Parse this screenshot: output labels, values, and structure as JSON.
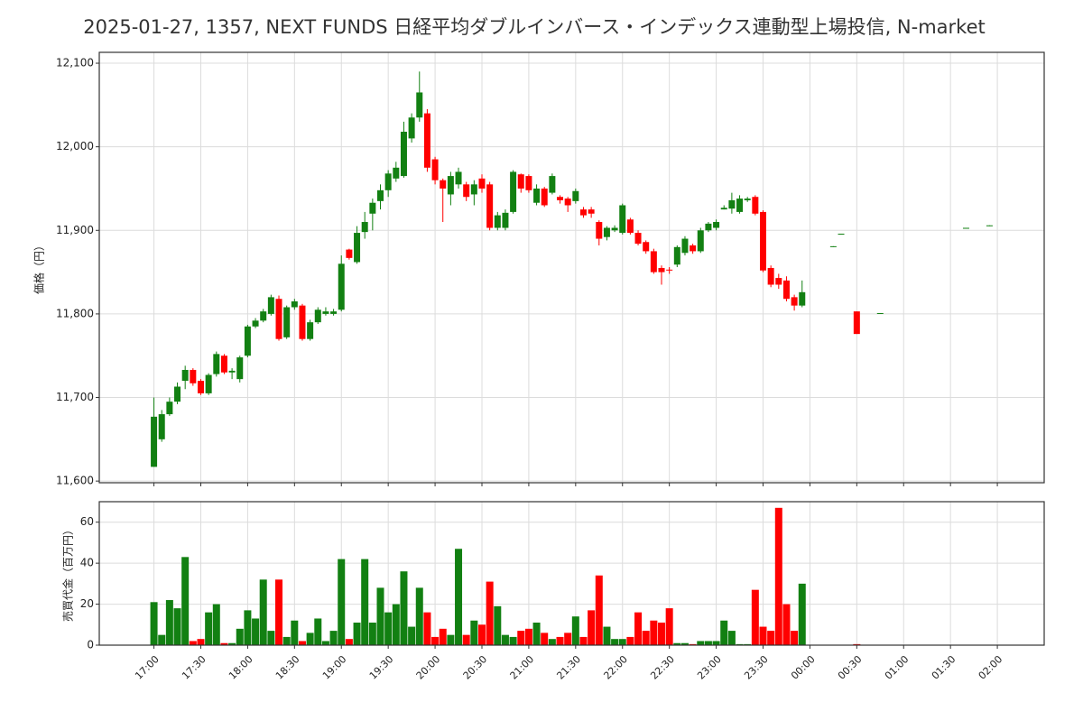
{
  "chart_data": [
    {
      "type": "candlestick",
      "title": "2025-01-27, 1357, NEXT FUNDS 日経平均ダブルインバース・インデックス連動型上場投信, N-market",
      "ylabel": "価格（円）",
      "up_color": "#128012",
      "down_color": "#ff0000",
      "grid": true,
      "ylim": [
        11598,
        12113
      ],
      "yticks": [
        {
          "value": 11600,
          "label": "11,600"
        },
        {
          "value": 11700,
          "label": "11,700"
        },
        {
          "value": 11800,
          "label": "11,800"
        },
        {
          "value": 11900,
          "label": "11,900"
        },
        {
          "value": 12000,
          "label": "12,000"
        },
        {
          "value": 12100,
          "label": "12,100"
        }
      ],
      "x": [
        "17:00",
        "17:05",
        "17:10",
        "17:15",
        "17:20",
        "17:25",
        "17:30",
        "17:35",
        "17:40",
        "17:45",
        "17:50",
        "17:55",
        "18:00",
        "18:05",
        "18:10",
        "18:15",
        "18:20",
        "18:25",
        "18:30",
        "18:35",
        "18:40",
        "18:45",
        "18:50",
        "18:55",
        "19:00",
        "19:05",
        "19:10",
        "19:15",
        "19:20",
        "19:25",
        "19:30",
        "19:35",
        "19:40",
        "19:45",
        "19:50",
        "19:55",
        "20:00",
        "20:05",
        "20:10",
        "20:15",
        "20:20",
        "20:25",
        "20:30",
        "20:35",
        "20:40",
        "20:45",
        "20:50",
        "20:55",
        "21:00",
        "21:05",
        "21:10",
        "21:15",
        "21:20",
        "21:25",
        "21:30",
        "21:35",
        "21:40",
        "21:45",
        "21:50",
        "21:55",
        "22:00",
        "22:05",
        "22:10",
        "22:15",
        "22:20",
        "22:25",
        "22:30",
        "22:35",
        "22:40",
        "22:45",
        "22:50",
        "22:55",
        "23:00",
        "23:05",
        "23:10",
        "23:15",
        "23:20",
        "23:25",
        "23:30",
        "23:35",
        "23:40",
        "23:45",
        "23:50",
        "23:55",
        "00:15",
        "00:20",
        "00:30",
        "00:45",
        "01:40",
        "01:55"
      ],
      "open": [
        11617,
        11650,
        11680,
        11695,
        11720,
        11733,
        11720,
        11705,
        11728,
        11750,
        11730,
        11722,
        11750,
        11785,
        11792,
        11800,
        11818,
        11772,
        11808,
        11810,
        11770,
        11790,
        11800,
        11800,
        11805,
        11877,
        11862,
        11898,
        11920,
        11935,
        11948,
        11962,
        11965,
        12010,
        12035,
        12040,
        11985,
        11960,
        11943,
        11955,
        11955,
        11943,
        11962,
        11955,
        11903,
        11903,
        11922,
        11967,
        11965,
        11933,
        11950,
        11945,
        11940,
        11938,
        11935,
        11925,
        11925,
        11910,
        11892,
        11900,
        11897,
        11913,
        11897,
        11886,
        11875,
        11855,
        11853,
        11859,
        11873,
        11882,
        11875,
        11900,
        11903,
        11925,
        11926,
        11922,
        11936,
        11940,
        11922,
        11855,
        11843,
        11840,
        11820,
        11810,
        11880,
        11895,
        11803,
        11800,
        11902,
        11905
      ],
      "high": [
        11700,
        11685,
        11700,
        11718,
        11738,
        11735,
        11722,
        11729,
        11755,
        11752,
        11735,
        11750,
        11787,
        11795,
        11806,
        11823,
        11822,
        11810,
        11818,
        11812,
        11793,
        11808,
        11808,
        11806,
        11870,
        11878,
        11905,
        11922,
        11938,
        11955,
        11972,
        11982,
        12030,
        12040,
        12090,
        12045,
        11988,
        11962,
        11970,
        11975,
        11958,
        11960,
        11967,
        11958,
        11922,
        11925,
        11972,
        11968,
        11967,
        11955,
        11952,
        11968,
        11942,
        11940,
        11950,
        11928,
        11928,
        11912,
        11905,
        11906,
        11932,
        11915,
        11900,
        11888,
        11878,
        11858,
        11856,
        11882,
        11893,
        11884,
        11903,
        11910,
        11913,
        11930,
        11945,
        11942,
        11940,
        11942,
        11924,
        11858,
        11848,
        11845,
        11823,
        11840,
        11881,
        11896,
        11803,
        11801,
        11903,
        11906
      ],
      "low": [
        11617,
        11647,
        11678,
        11692,
        11710,
        11714,
        11703,
        11703,
        11725,
        11728,
        11722,
        11718,
        11748,
        11783,
        11790,
        11798,
        11768,
        11770,
        11805,
        11768,
        11768,
        11788,
        11798,
        11798,
        11803,
        11865,
        11860,
        11890,
        11900,
        11925,
        11940,
        11958,
        11963,
        12005,
        12030,
        11970,
        11955,
        11910,
        11930,
        11950,
        11935,
        11930,
        11945,
        11900,
        11900,
        11900,
        11920,
        11945,
        11945,
        11930,
        11928,
        11943,
        11932,
        11922,
        11932,
        11915,
        11915,
        11882,
        11888,
        11898,
        11895,
        11895,
        11882,
        11872,
        11848,
        11835,
        11848,
        11856,
        11870,
        11872,
        11873,
        11898,
        11900,
        11925,
        11920,
        11920,
        11934,
        11918,
        11850,
        11832,
        11830,
        11815,
        11804,
        11808,
        11880,
        11895,
        11776,
        11800,
        11902,
        11905
      ],
      "close": [
        11677,
        11680,
        11695,
        11713,
        11733,
        11717,
        11705,
        11727,
        11752,
        11730,
        11732,
        11748,
        11785,
        11792,
        11803,
        11820,
        11770,
        11808,
        11815,
        11770,
        11790,
        11805,
        11803,
        11803,
        11860,
        11867,
        11897,
        11910,
        11933,
        11948,
        11968,
        11975,
        12018,
        12035,
        12065,
        11975,
        11960,
        11950,
        11965,
        11970,
        11940,
        11955,
        11950,
        11903,
        11918,
        11921,
        11970,
        11950,
        11948,
        11950,
        11930,
        11965,
        11936,
        11930,
        11947,
        11918,
        11920,
        11890,
        11903,
        11903,
        11930,
        11897,
        11884,
        11875,
        11850,
        11850,
        11852,
        11880,
        11890,
        11875,
        11900,
        11908,
        11910,
        11927,
        11936,
        11938,
        11938,
        11920,
        11852,
        11835,
        11835,
        11818,
        11810,
        11826,
        11881,
        11896,
        11776,
        11801,
        11903,
        11906
      ]
    },
    {
      "type": "bar",
      "ylabel": "売買代金（百万円）",
      "grid": true,
      "ylim": [
        0,
        70
      ],
      "yticks": [
        0,
        20,
        40,
        60
      ],
      "xlim": [
        "16:25",
        "02:30"
      ],
      "xticks": [
        "17:00",
        "17:30",
        "18:00",
        "18:30",
        "19:00",
        "19:30",
        "20:00",
        "20:30",
        "21:00",
        "21:30",
        "22:00",
        "22:30",
        "23:00",
        "23:30",
        "00:00",
        "00:30",
        "01:00",
        "01:30",
        "02:00"
      ],
      "values": [
        21,
        5,
        22,
        18,
        43,
        2,
        3,
        16,
        20,
        1,
        1,
        8,
        17,
        13,
        32,
        7,
        32,
        4,
        12,
        2,
        6,
        13,
        2,
        7,
        42,
        3,
        11,
        42,
        11,
        28,
        16,
        20,
        36,
        9,
        28,
        16,
        4,
        8,
        5,
        47,
        5,
        12,
        10,
        31,
        19,
        5,
        4,
        7,
        8,
        11,
        6,
        3,
        4,
        6,
        14,
        4,
        17,
        34,
        9,
        3,
        3,
        4,
        16,
        7,
        12,
        11,
        18,
        1,
        1,
        0.5,
        2,
        2,
        2,
        12,
        7,
        0.5,
        0.5,
        27,
        9,
        7,
        67,
        20,
        7,
        30,
        0.2,
        0.2,
        0.5,
        0.2,
        0.2,
        0.2
      ]
    }
  ]
}
